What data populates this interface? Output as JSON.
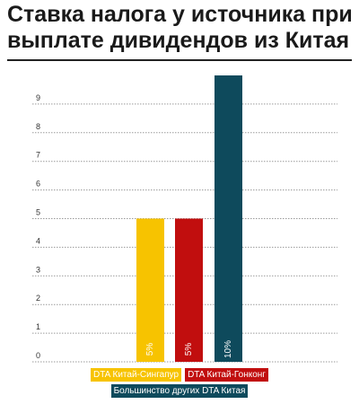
{
  "title": "Ставка налога у источника при выплате дивидендов из Китая",
  "chart_data": {
    "type": "bar",
    "title": "Ставка налога у источника при выплате дивидендов из Китая",
    "categories": [
      "DTA Китай-Сингапур",
      "DTA Китай-Гонконг",
      "Большинство других DTA Китая"
    ],
    "values": [
      5,
      5,
      10
    ],
    "data_labels": [
      "5%",
      "5%",
      "10%"
    ],
    "colors": [
      "#f7c300",
      "#c10e0e",
      "#0e4a5c"
    ],
    "y_ticks": [
      "0",
      "1",
      "2",
      "3",
      "4",
      "5",
      "6",
      "7",
      "8",
      "9"
    ],
    "ylim": [
      0,
      10
    ],
    "grid": true,
    "legend_placement": "bottom"
  }
}
